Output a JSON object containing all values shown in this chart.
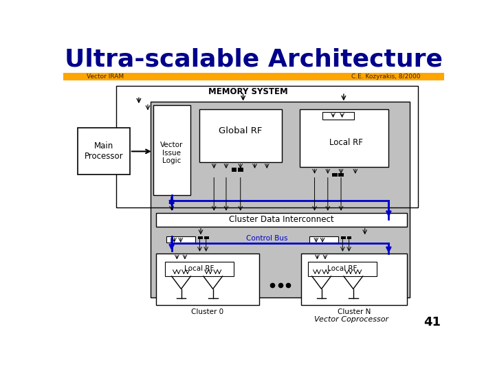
{
  "title": "Ultra-scalable Architecture",
  "title_color": "#00008B",
  "title_fontsize": 26,
  "title_weight": "bold",
  "subtitle_left": "Vector IRAM",
  "subtitle_right": "C.E. Kozyrakis, 8/2000",
  "subtitle_color": "#3a2000",
  "subtitle_bg": "#FFA500",
  "subtitle_fontsize": 6.5,
  "page_number": "41",
  "bg_color": "#ffffff",
  "gray_fill": "#c0c0c0",
  "white_fill": "#ffffff",
  "blue_line": "#0000cc",
  "black": "#000000"
}
